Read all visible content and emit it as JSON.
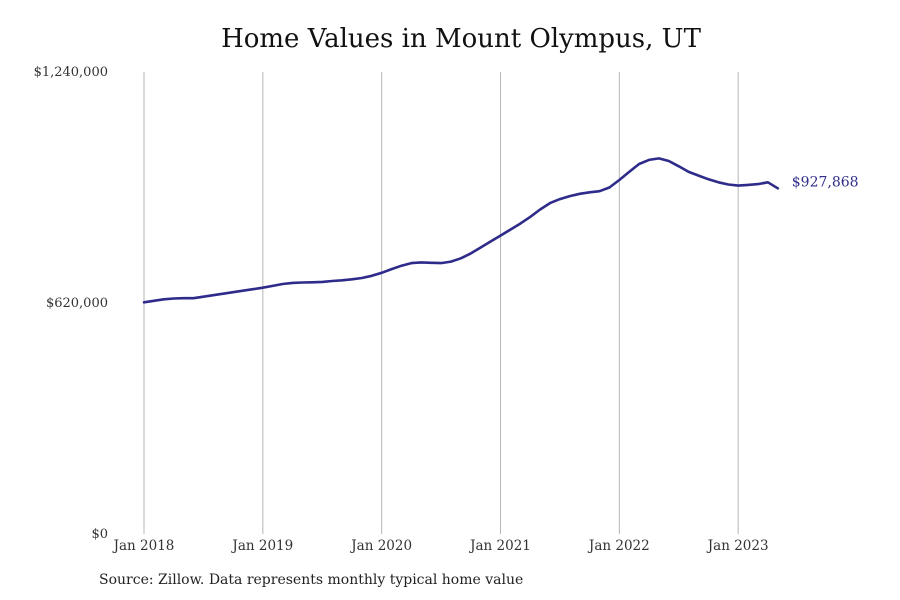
{
  "chart_data": {
    "type": "line",
    "title": "Home Values in Mount Olympus, UT",
    "xlabel": "",
    "ylabel": "",
    "ylim": [
      0,
      1240000
    ],
    "y_ticks": [
      {
        "value": 0,
        "label": "$0"
      },
      {
        "value": 620000,
        "label": "$620,000"
      },
      {
        "value": 1240000,
        "label": "$1,240,000"
      }
    ],
    "x_ticks": [
      {
        "date": "2018-01",
        "label": "Jan 2018"
      },
      {
        "date": "2019-01",
        "label": "Jan 2019"
      },
      {
        "date": "2020-01",
        "label": "Jan 2020"
      },
      {
        "date": "2021-01",
        "label": "Jan 2021"
      },
      {
        "date": "2022-01",
        "label": "Jan 2022"
      },
      {
        "date": "2023-01",
        "label": "Jan 2023"
      }
    ],
    "x_range": [
      "2018-01",
      "2023-12"
    ],
    "grid": "vertical",
    "line_color": "#2f2b8a",
    "end_label": "$927,868",
    "series": [
      {
        "x": [
          "2018-01",
          "2018-02",
          "2018-03",
          "2018-04",
          "2018-05",
          "2018-06",
          "2018-07",
          "2018-08",
          "2018-09",
          "2018-10",
          "2018-11",
          "2018-12",
          "2019-01",
          "2019-02",
          "2019-03",
          "2019-04",
          "2019-05",
          "2019-06",
          "2019-07",
          "2019-08",
          "2019-09",
          "2019-10",
          "2019-11",
          "2019-12",
          "2020-01",
          "2020-02",
          "2020-03",
          "2020-04",
          "2020-05",
          "2020-06",
          "2020-07",
          "2020-08",
          "2020-09",
          "2020-10",
          "2020-11",
          "2020-12",
          "2021-01",
          "2021-02",
          "2021-03",
          "2021-04",
          "2021-05",
          "2021-06",
          "2021-07",
          "2021-08",
          "2021-09",
          "2021-10",
          "2021-11",
          "2021-12",
          "2022-01",
          "2022-02",
          "2022-03",
          "2022-04",
          "2022-05",
          "2022-06",
          "2022-07",
          "2022-08",
          "2022-09",
          "2022-10",
          "2022-11",
          "2022-12",
          "2023-01",
          "2023-02",
          "2023-03",
          "2023-04",
          "2023-05"
        ],
        "values": [
          622000,
          626000,
          630000,
          632000,
          633000,
          633000,
          637000,
          641000,
          645000,
          649000,
          653000,
          657000,
          661000,
          666000,
          671000,
          674000,
          675000,
          675500,
          676500,
          679000,
          681000,
          683500,
          687000,
          693000,
          701000,
          711000,
          720000,
          727000,
          729000,
          728000,
          727000,
          731000,
          740000,
          753000,
          769000,
          785000,
          801000,
          817000,
          833000,
          851000,
          871000,
          888000,
          899000,
          907000,
          913000,
          917000,
          920000,
          930000,
          950000,
          972000,
          993000,
          1004000,
          1008000,
          1001000,
          987000,
          972000,
          962000,
          952000,
          944000,
          938000,
          935000,
          937000,
          939000,
          944000,
          927868
        ]
      }
    ]
  },
  "source": "Source: Zillow. Data represents monthly typical home value"
}
